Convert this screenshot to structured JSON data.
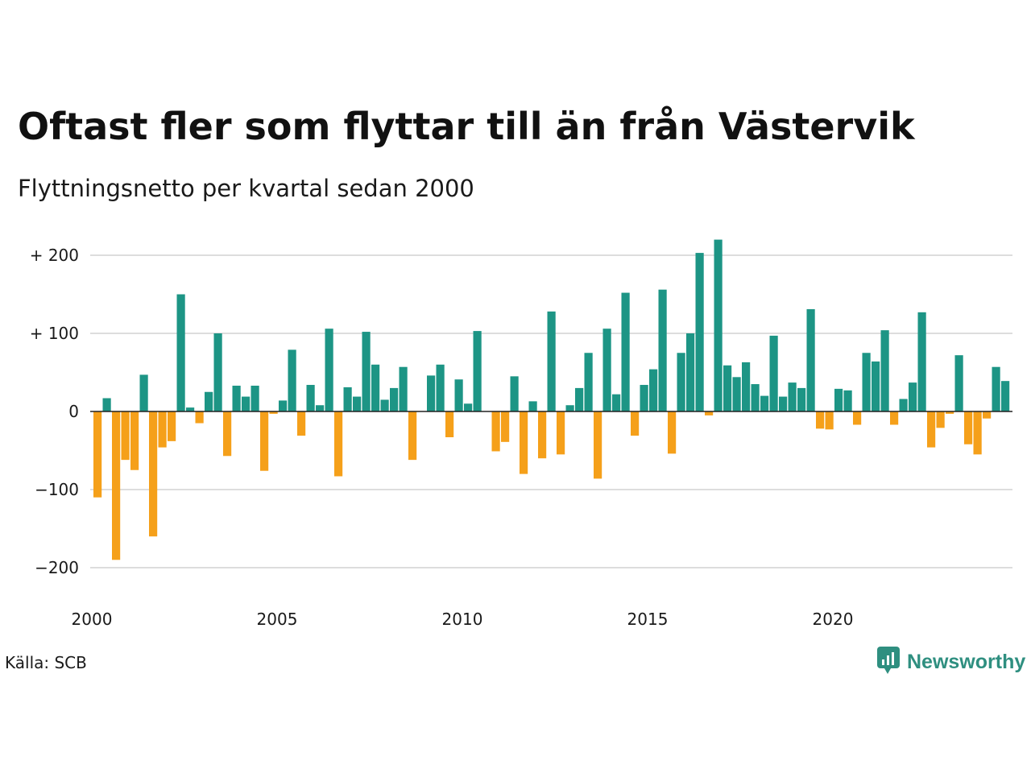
{
  "title": "Oftast fler som flyttar till än från Västervik",
  "subtitle": "Flyttningsnetto per kvartal sedan 2000",
  "source": "Källa: SCB",
  "brand": {
    "name": "Newsworthy",
    "icon": "newsworthy-logo-icon"
  },
  "colors": {
    "positive": "#1d9585",
    "negative": "#f5a01a",
    "grid": "#dddddd",
    "zero_line": "#222222"
  },
  "chart_data": {
    "type": "bar",
    "title": "Oftast fler som flyttar till än från Västervik",
    "subtitle": "Flyttningsnetto per kvartal sedan 2000",
    "xlabel": "",
    "ylabel": "",
    "ylim": [
      -220,
      225
    ],
    "y_ticks": [
      200,
      100,
      0,
      -100,
      -200
    ],
    "y_tick_labels": [
      "+ 200",
      "+ 100",
      "0",
      "−100",
      "−200"
    ],
    "x_ticks": [
      2000,
      2005,
      2010,
      2015,
      2020
    ],
    "x_tick_labels": [
      "2000",
      "2005",
      "2010",
      "2015",
      "2020"
    ],
    "x_range": [
      2000,
      2025
    ],
    "grid": true,
    "legend": "none",
    "start_quarter": "2000 K1",
    "values": [
      -110,
      17,
      -190,
      -62,
      -75,
      47,
      -160,
      -46,
      -38,
      150,
      5,
      -15,
      25,
      100,
      -57,
      33,
      19,
      33,
      -76,
      -3,
      14,
      79,
      -31,
      34,
      8,
      106,
      -83,
      31,
      19,
      102,
      60,
      15,
      30,
      57,
      -62,
      0,
      46,
      60,
      -33,
      41,
      10,
      103,
      0,
      -51,
      -39,
      45,
      -80,
      13,
      -60,
      128,
      -55,
      8,
      30,
      75,
      -86,
      106,
      22,
      152,
      -31,
      34,
      54,
      156,
      -54,
      75,
      100,
      203,
      -5,
      220,
      59,
      44,
      63,
      35,
      20,
      97,
      19,
      37,
      30,
      131,
      -22,
      -23,
      29,
      27,
      -17,
      75,
      64,
      104,
      -17,
      16,
      37,
      127,
      -46,
      -21,
      -3,
      72,
      -42,
      -55,
      -9,
      57,
      39
    ]
  }
}
